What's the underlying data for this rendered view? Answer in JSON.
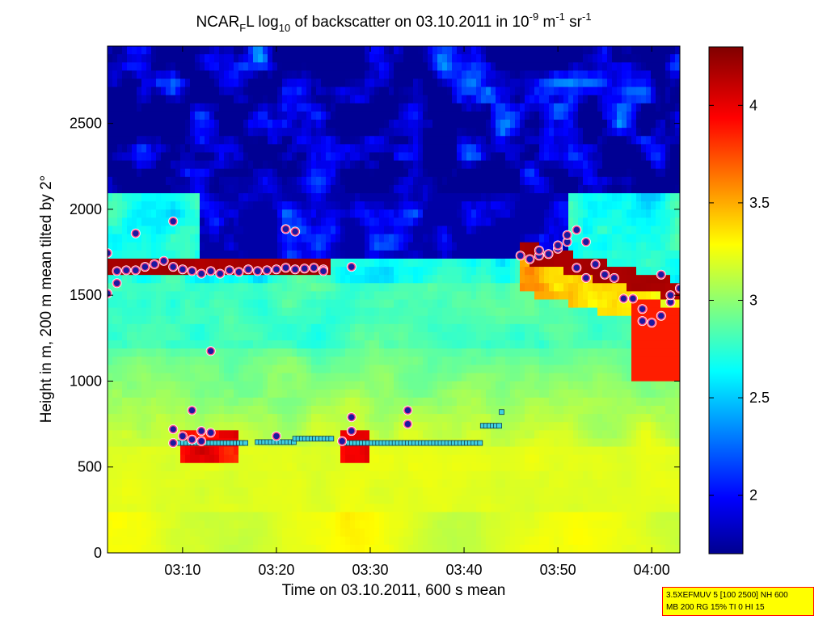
{
  "chart_data": {
    "type": "heatmap",
    "title_parts": {
      "a": "NCAR",
      "sub_f": "F",
      "b": "L log",
      "sub_10": "10",
      "c": " of backscatter on 03.10.2011 in 10",
      "sup1": "-9",
      "d": " m",
      "sup2": "-1",
      "e": " sr",
      "sup3": "-1"
    },
    "xlabel": "Time on 03.10.2011, 600 s mean",
    "ylabel": "Height in m, 200 m mean tilted by 2°",
    "x_range": [
      "03:02",
      "04:03"
    ],
    "x_ticks": [
      "03:10",
      "03:20",
      "03:30",
      "03:40",
      "03:50",
      "04:00"
    ],
    "y_range": [
      0,
      2950
    ],
    "y_ticks": [
      0,
      500,
      1000,
      1500,
      2000,
      2500
    ],
    "colorbar": {
      "range": [
        1.7,
        4.3
      ],
      "ticks": [
        2,
        2.5,
        3,
        3.5,
        4
      ],
      "colormap": "jet"
    },
    "cloud_top_markers": {
      "color_fill": "#1a1aa0",
      "color_edge": "#ff4a8a",
      "color_ring": "#ffffff",
      "points": [
        [
          "03:02",
          1745
        ],
        [
          "03:02",
          1510
        ],
        [
          "03:03",
          1570
        ],
        [
          "03:03",
          1640
        ],
        [
          "03:04",
          1645
        ],
        [
          "03:05",
          1860
        ],
        [
          "03:05",
          1645
        ],
        [
          "03:06",
          1665
        ],
        [
          "03:07",
          1680
        ],
        [
          "03:08",
          1700
        ],
        [
          "03:09",
          1930
        ],
        [
          "03:09",
          1665
        ],
        [
          "03:10",
          1650
        ],
        [
          "03:11",
          1640
        ],
        [
          "03:12",
          1625
        ],
        [
          "03:13",
          1175
        ],
        [
          "03:13",
          1640
        ],
        [
          "03:14",
          1625
        ],
        [
          "03:15",
          1645
        ],
        [
          "03:16",
          1635
        ],
        [
          "03:17",
          1650
        ],
        [
          "03:18",
          1640
        ],
        [
          "03:19",
          1645
        ],
        [
          "03:20",
          1650
        ],
        [
          "03:21",
          1885
        ],
        [
          "03:21",
          1660
        ],
        [
          "03:22",
          1870
        ],
        [
          "03:22",
          1650
        ],
        [
          "03:23",
          1655
        ],
        [
          "03:24",
          1660
        ],
        [
          "03:25",
          1650
        ],
        [
          "03:25",
          1640
        ],
        [
          "03:28",
          1665
        ],
        [
          "03:46",
          1730
        ],
        [
          "03:47",
          1710
        ],
        [
          "03:48",
          1730
        ],
        [
          "03:48",
          1760
        ],
        [
          "03:49",
          1740
        ],
        [
          "03:50",
          1770
        ],
        [
          "03:50",
          1790
        ],
        [
          "03:51",
          1810
        ],
        [
          "03:51",
          1850
        ],
        [
          "03:52",
          1880
        ],
        [
          "03:52",
          1660
        ],
        [
          "03:53",
          1810
        ],
        [
          "03:53",
          1600
        ],
        [
          "03:54",
          1680
        ],
        [
          "03:55",
          1620
        ],
        [
          "03:56",
          1600
        ],
        [
          "03:57",
          1480
        ],
        [
          "03:58",
          1480
        ],
        [
          "03:59",
          1420
        ],
        [
          "03:59",
          1350
        ],
        [
          "04:00",
          1340
        ],
        [
          "04:01",
          1380
        ],
        [
          "04:01",
          1620
        ],
        [
          "04:02",
          1460
        ],
        [
          "04:02",
          1500
        ],
        [
          "04:03",
          1540
        ],
        [
          "03:09",
          720
        ],
        [
          "03:09",
          640
        ],
        [
          "03:10",
          680
        ],
        [
          "03:11",
          830
        ],
        [
          "03:11",
          660
        ],
        [
          "03:12",
          710
        ],
        [
          "03:12",
          650
        ],
        [
          "03:13",
          700
        ],
        [
          "03:20",
          680
        ],
        [
          "03:27",
          650
        ],
        [
          "03:28",
          710
        ],
        [
          "03:28",
          790
        ],
        [
          "03:34",
          750
        ],
        [
          "03:34",
          830
        ]
      ]
    },
    "cloud_base_markers": {
      "color": "#40d0e0",
      "segments": [
        [
          "03:09",
          "03:17",
          640
        ],
        [
          "03:18",
          "03:22",
          645
        ],
        [
          "03:22",
          "03:26",
          665
        ],
        [
          "03:27",
          "03:42",
          640
        ],
        [
          "03:42",
          "03:44",
          740
        ]
      ],
      "isolated": [
        [
          "03:44",
          820
        ]
      ]
    }
  },
  "info_box": {
    "line1": "3.5XEFMUV 5 [100 2500] NH 600",
    "line2": "MB 200 RG 15% TI 0 HI 15"
  }
}
